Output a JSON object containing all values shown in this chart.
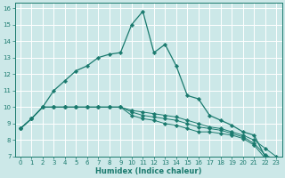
{
  "background_color": "#cce8e8",
  "grid_color": "#ffffff",
  "line_color": "#1a7a6e",
  "xlabel": "Humidex (Indice chaleur)",
  "xlim": [
    -0.5,
    23.5
  ],
  "ylim": [
    7,
    16.3
  ],
  "xticks": [
    0,
    1,
    2,
    3,
    4,
    5,
    6,
    7,
    8,
    9,
    10,
    11,
    12,
    13,
    14,
    15,
    16,
    17,
    18,
    19,
    20,
    21,
    22,
    23
  ],
  "yticks": [
    7,
    8,
    9,
    10,
    11,
    12,
    13,
    14,
    15,
    16
  ],
  "series_main": {
    "x": [
      0,
      1,
      2,
      3,
      4,
      5,
      6,
      7,
      8,
      9,
      10,
      11,
      12,
      13,
      14,
      15,
      16,
      17,
      18,
      19,
      20,
      21,
      22,
      23
    ],
    "y": [
      8.7,
      9.3,
      10.0,
      11.0,
      11.6,
      12.2,
      12.5,
      13.0,
      13.2,
      13.3,
      15.0,
      15.8,
      13.3,
      13.8,
      12.5,
      10.7,
      10.5,
      9.5,
      9.2,
      8.9,
      8.5,
      8.3,
      7.0,
      6.8
    ]
  },
  "series_flat": [
    {
      "x": [
        0,
        1,
        2,
        3,
        4,
        5,
        6,
        7,
        8,
        9,
        10,
        11,
        12,
        13,
        14,
        15,
        16,
        17,
        18,
        19,
        20,
        21,
        22,
        23
      ],
      "y": [
        8.7,
        9.3,
        10.0,
        10.0,
        10.0,
        10.0,
        10.0,
        10.0,
        10.0,
        10.0,
        9.8,
        9.7,
        9.6,
        9.5,
        9.4,
        9.2,
        9.0,
        8.8,
        8.7,
        8.5,
        8.3,
        8.0,
        7.5,
        7.0
      ]
    },
    {
      "x": [
        0,
        1,
        2,
        3,
        4,
        5,
        6,
        7,
        8,
        9,
        10,
        11,
        12,
        13,
        14,
        15,
        16,
        17,
        18,
        19,
        20,
        21,
        22,
        23
      ],
      "y": [
        8.7,
        9.3,
        10.0,
        10.0,
        10.0,
        10.0,
        10.0,
        10.0,
        10.0,
        10.0,
        9.7,
        9.5,
        9.4,
        9.3,
        9.2,
        9.0,
        8.8,
        8.7,
        8.6,
        8.4,
        8.2,
        7.8,
        7.1,
        6.8
      ]
    },
    {
      "x": [
        0,
        1,
        2,
        3,
        4,
        5,
        6,
        7,
        8,
        9,
        10,
        11,
        12,
        13,
        14,
        15,
        16,
        17,
        18,
        19,
        20,
        21,
        22,
        23
      ],
      "y": [
        8.7,
        9.3,
        10.0,
        10.0,
        10.0,
        10.0,
        10.0,
        10.0,
        10.0,
        10.0,
        9.5,
        9.3,
        9.2,
        9.0,
        8.9,
        8.7,
        8.5,
        8.5,
        8.4,
        8.3,
        8.1,
        7.7,
        6.9,
        6.8
      ]
    }
  ]
}
